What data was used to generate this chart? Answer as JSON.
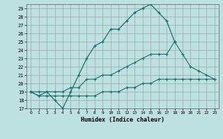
{
  "title": "",
  "xlabel": "Humidex (Indice chaleur)",
  "bg_color": "#bde0e0",
  "grid_color": "#999999",
  "line_color": "#1a6b6b",
  "xlim": [
    -0.5,
    23.5
  ],
  "ylim": [
    17,
    29.5
  ],
  "yticks": [
    17,
    18,
    19,
    20,
    21,
    22,
    23,
    24,
    25,
    26,
    27,
    28,
    29
  ],
  "xticks": [
    0,
    1,
    2,
    3,
    4,
    5,
    6,
    7,
    8,
    9,
    10,
    11,
    12,
    13,
    14,
    15,
    16,
    17,
    18,
    19,
    20,
    21,
    22,
    23
  ],
  "line1_x": [
    0,
    1,
    2,
    3,
    4,
    5,
    6,
    7,
    8,
    9,
    10,
    11,
    12,
    13,
    14,
    15,
    16,
    17,
    18
  ],
  "line1_y": [
    19,
    18.5,
    19,
    18,
    17,
    19,
    21,
    23,
    24.5,
    25,
    26.5,
    26.5,
    27.5,
    28.5,
    29,
    29.5,
    28.5,
    27.5,
    25
  ],
  "line2_x": [
    0,
    1,
    2,
    3,
    4,
    5,
    6,
    7,
    8,
    9,
    10,
    11,
    12,
    13,
    14,
    15,
    16,
    17,
    18,
    19,
    20,
    21,
    22,
    23
  ],
  "line2_y": [
    19,
    19,
    19,
    19,
    19,
    19.5,
    19.5,
    20.5,
    20.5,
    21,
    21,
    21.5,
    22,
    22.5,
    23,
    23.5,
    23.5,
    23.5,
    25,
    23.5,
    22,
    21.5,
    21,
    20.5
  ],
  "line3_x": [
    0,
    1,
    2,
    3,
    4,
    5,
    6,
    7,
    8,
    9,
    10,
    11,
    12,
    13,
    14,
    15,
    16,
    17,
    18,
    19,
    20,
    21,
    22,
    23
  ],
  "line3_y": [
    19,
    18.5,
    18.5,
    18.5,
    18.5,
    18.5,
    18.5,
    18.5,
    18.5,
    19,
    19,
    19,
    19.5,
    19.5,
    20,
    20,
    20.5,
    20.5,
    20.5,
    20.5,
    20.5,
    20.5,
    20.5,
    20.5
  ]
}
